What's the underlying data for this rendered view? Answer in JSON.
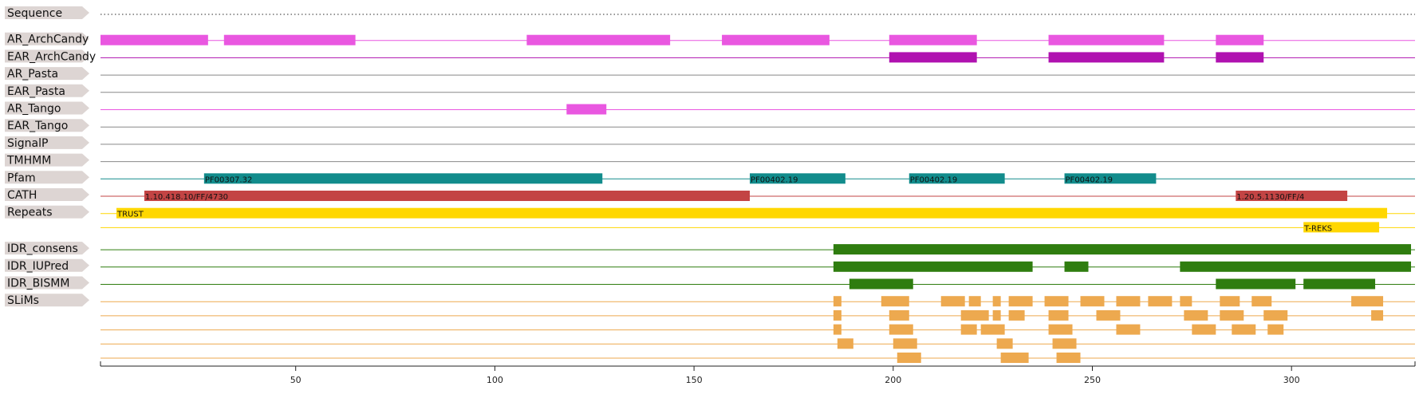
{
  "sequence_length": 331,
  "colors": {
    "tag_bg": "#ddd5d3",
    "archcandy": "#e957e0",
    "ear_archcandy": "#b012b0",
    "grey_line": "#888888",
    "tango": "#e957e0",
    "pfam": "#128c8c",
    "cath": "#c34444",
    "repeats": "#ffd700",
    "idr": "#2f7d0f",
    "slims": "#eda94f"
  },
  "tracks": [
    {
      "id": "sequence",
      "label": "Sequence",
      "style": "dotted",
      "color": "#555555",
      "rows": [
        []
      ]
    },
    {
      "id": "ar-archcandy",
      "label": "AR_ArchCandy",
      "color": "#e957e0",
      "rows": [
        [
          {
            "start": 1,
            "end": 28
          },
          {
            "start": 32,
            "end": 65
          },
          {
            "start": 108,
            "end": 144
          },
          {
            "start": 157,
            "end": 184
          },
          {
            "start": 199,
            "end": 221
          },
          {
            "start": 239,
            "end": 268
          },
          {
            "start": 281,
            "end": 293
          }
        ]
      ]
    },
    {
      "id": "ear-archcandy",
      "label": "EAR_ArchCandy",
      "color": "#b012b0",
      "rows": [
        [
          {
            "start": 199,
            "end": 221
          },
          {
            "start": 239,
            "end": 268
          },
          {
            "start": 281,
            "end": 293
          }
        ]
      ]
    },
    {
      "id": "ar-pasta",
      "label": "AR_Pasta",
      "color": "#888888",
      "rows": [
        []
      ]
    },
    {
      "id": "ear-pasta",
      "label": "EAR_Pasta",
      "color": "#888888",
      "rows": [
        []
      ]
    },
    {
      "id": "ar-tango",
      "label": "AR_Tango",
      "color": "#e957e0",
      "rows": [
        [
          {
            "start": 118,
            "end": 128
          }
        ]
      ]
    },
    {
      "id": "ear-tango",
      "label": "EAR_Tango",
      "color": "#888888",
      "rows": [
        []
      ]
    },
    {
      "id": "signalp",
      "label": "SignalP",
      "color": "#888888",
      "rows": [
        []
      ]
    },
    {
      "id": "tmhmm",
      "label": "TMHMM",
      "color": "#888888",
      "rows": [
        []
      ]
    },
    {
      "id": "pfam",
      "label": "Pfam",
      "color": "#128c8c",
      "rows": [
        [
          {
            "start": 27,
            "end": 127,
            "label": "PF00307.32"
          },
          {
            "start": 164,
            "end": 188,
            "label": "PF00402.19"
          },
          {
            "start": 204,
            "end": 228,
            "label": "PF00402.19"
          },
          {
            "start": 243,
            "end": 266,
            "label": "PF00402.19"
          }
        ]
      ]
    },
    {
      "id": "cath",
      "label": "CATH",
      "color": "#c34444",
      "rows": [
        [
          {
            "start": 12,
            "end": 164,
            "label": "1.10.418.10/FF/4730"
          },
          {
            "start": 286,
            "end": 314,
            "label": "1.20.5.1130/FF/4"
          }
        ]
      ]
    },
    {
      "id": "repeats",
      "label": "Repeats",
      "color": "#ffd700",
      "rows": [
        [
          {
            "start": 5,
            "end": 324,
            "label": "TRUST"
          }
        ],
        [
          {
            "start": 303,
            "end": 322,
            "label": "T-REKS"
          }
        ]
      ]
    },
    {
      "id": "idr-consens",
      "label": "IDR_consens",
      "color": "#2f7d0f",
      "rows": [
        [
          {
            "start": 185,
            "end": 330
          }
        ]
      ]
    },
    {
      "id": "idr-iupred",
      "label": "IDR_IUPred",
      "color": "#2f7d0f",
      "rows": [
        [
          {
            "start": 185,
            "end": 235
          },
          {
            "start": 243,
            "end": 249
          },
          {
            "start": 272,
            "end": 330
          }
        ]
      ]
    },
    {
      "id": "idr-bismm",
      "label": "IDR_BISMM",
      "color": "#2f7d0f",
      "rows": [
        [
          {
            "start": 189,
            "end": 205
          },
          {
            "start": 281,
            "end": 301
          },
          {
            "start": 303,
            "end": 321
          }
        ]
      ]
    },
    {
      "id": "slims",
      "label": "SLiMs",
      "color": "#eda94f",
      "rows": [
        [
          {
            "start": 185,
            "end": 187
          },
          {
            "start": 197,
            "end": 204
          },
          {
            "start": 212,
            "end": 218
          },
          {
            "start": 219,
            "end": 222
          },
          {
            "start": 225,
            "end": 227
          },
          {
            "start": 229,
            "end": 235
          },
          {
            "start": 238,
            "end": 244
          },
          {
            "start": 247,
            "end": 253
          },
          {
            "start": 256,
            "end": 262
          },
          {
            "start": 264,
            "end": 270
          },
          {
            "start": 272,
            "end": 275
          },
          {
            "start": 282,
            "end": 287
          },
          {
            "start": 290,
            "end": 295
          },
          {
            "start": 315,
            "end": 323
          }
        ],
        [
          {
            "start": 185,
            "end": 187
          },
          {
            "start": 199,
            "end": 204
          },
          {
            "start": 217,
            "end": 224
          },
          {
            "start": 225,
            "end": 227
          },
          {
            "start": 229,
            "end": 233
          },
          {
            "start": 239,
            "end": 244
          },
          {
            "start": 251,
            "end": 257
          },
          {
            "start": 273,
            "end": 279
          },
          {
            "start": 282,
            "end": 288
          },
          {
            "start": 293,
            "end": 299
          },
          {
            "start": 320,
            "end": 323
          }
        ],
        [
          {
            "start": 185,
            "end": 187
          },
          {
            "start": 199,
            "end": 205
          },
          {
            "start": 217,
            "end": 221
          },
          {
            "start": 222,
            "end": 228
          },
          {
            "start": 239,
            "end": 245
          },
          {
            "start": 256,
            "end": 262
          },
          {
            "start": 275,
            "end": 281
          },
          {
            "start": 285,
            "end": 291
          },
          {
            "start": 294,
            "end": 298
          }
        ],
        [
          {
            "start": 186,
            "end": 190
          },
          {
            "start": 200,
            "end": 206
          },
          {
            "start": 226,
            "end": 230
          },
          {
            "start": 240,
            "end": 246
          }
        ],
        [
          {
            "start": 201,
            "end": 207
          },
          {
            "start": 227,
            "end": 234
          },
          {
            "start": 241,
            "end": 247
          }
        ]
      ]
    }
  ],
  "axis": {
    "ticks": [
      50,
      100,
      150,
      200,
      250,
      300
    ]
  }
}
